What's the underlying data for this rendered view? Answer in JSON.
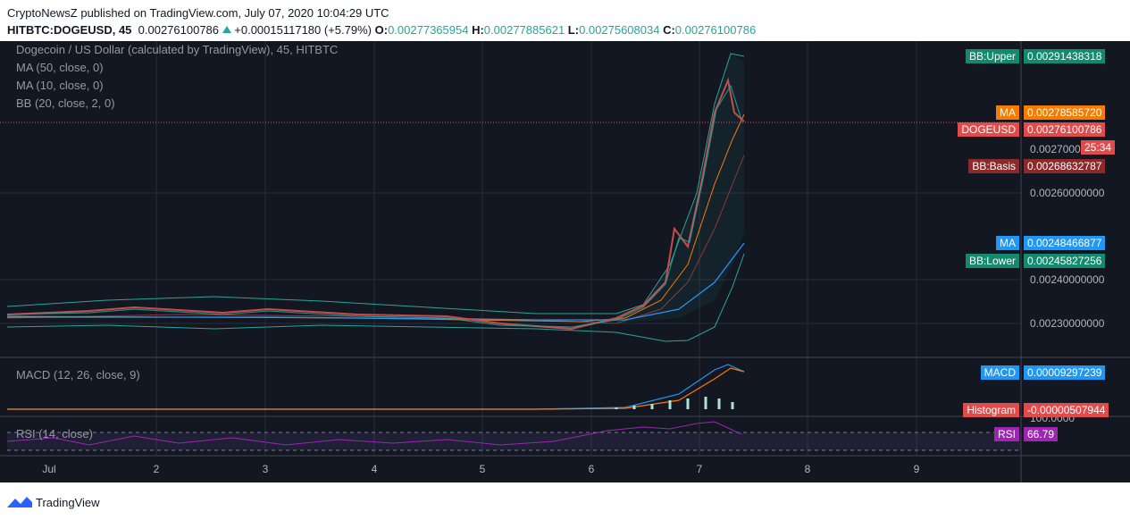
{
  "header": {
    "line1": "CryptoNewsZ published on TradingView.com, July 07, 2020 10:04:29 UTC",
    "symbol": "HITBTC:DOGEUSD, 45",
    "last": "0.00276100786",
    "change": "+0.00015117180 (+5.79%)",
    "open_label": "O:",
    "open": "0.00277365954",
    "high_label": "H:",
    "high": "0.00277885621",
    "low_label": "L:",
    "low": "0.00275608034",
    "close_label": "C:",
    "close": "0.00276100786"
  },
  "panes": {
    "main": [
      "Dogecoin / US Dollar (calculated by TradingView), 45, HITBTC",
      "MA (50, close, 0)",
      "MA (10, close, 0)",
      "BB (20, close, 2, 0)"
    ],
    "macd": "MACD (12, 26, close, 9)",
    "rsi": "RSI (14, close)"
  },
  "price_axis": [
    "0.0027000",
    "0.00260000000",
    "0.00240000000",
    "0.00230000000",
    "100.0000"
  ],
  "tags": [
    {
      "label": "BB:Upper",
      "value": "0.00291438318"
    },
    {
      "label": "MA",
      "value": "0.00278585720"
    },
    {
      "label": "DOGEUSD",
      "value": "0.00276100786"
    },
    {
      "label": "",
      "value": "25:34"
    },
    {
      "label": "BB:Basis",
      "value": "0.00268632787"
    },
    {
      "label": "MA",
      "value": "0.00248466877"
    },
    {
      "label": "BB:Lower",
      "value": "0.00245827256"
    },
    {
      "label": "MACD",
      "value": "0.00009297239"
    },
    {
      "label": "Histogram",
      "value": "-0.00000507944"
    },
    {
      "label": "RSI",
      "value": "66.79"
    }
  ],
  "time_axis": [
    "Jul",
    "2",
    "3",
    "4",
    "5",
    "6",
    "7",
    "8",
    "9"
  ],
  "footer": "TradingView"
}
